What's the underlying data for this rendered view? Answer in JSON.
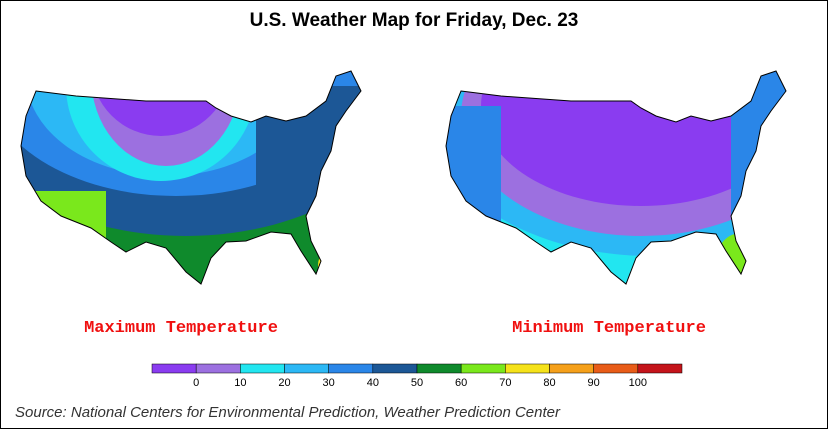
{
  "title": "U.S. Weather Map for Friday, Dec. 23",
  "maps": [
    {
      "label": "Maximum Temperature"
    },
    {
      "label": "Minimum Temperature"
    }
  ],
  "legend": {
    "ticks": [
      0,
      10,
      20,
      30,
      40,
      50,
      60,
      70,
      80,
      90,
      100
    ],
    "colors": [
      "#8a3cf0",
      "#9c70e0",
      "#22e6f0",
      "#2cb8f5",
      "#2a86e8",
      "#1c5796",
      "#0f8a2c",
      "#7ae81c",
      "#f5e21a",
      "#f5a01a",
      "#e85c18",
      "#c4141a"
    ]
  },
  "source": "Source: National Centers for Environmental Prediction, Weather Prediction Center"
}
